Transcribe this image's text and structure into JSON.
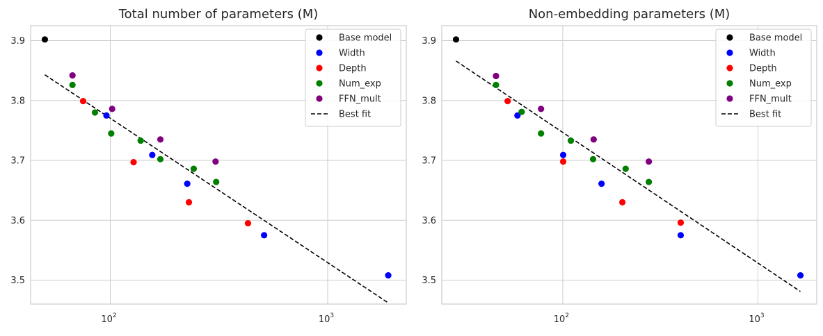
{
  "figure": {
    "background": "#ffffff"
  },
  "chart_data": [
    {
      "type": "scatter",
      "title": "Total number of parameters (M)",
      "xscale": "log",
      "xlim": [
        43,
        2300
      ],
      "ylim": [
        3.46,
        3.925
      ],
      "xticks": [
        100,
        1000
      ],
      "xtick_labels": [
        {
          "base": "10",
          "exp": "2"
        },
        {
          "base": "10",
          "exp": "3"
        }
      ],
      "yticks": [
        3.5,
        3.6,
        3.7,
        3.8,
        3.9
      ],
      "ytick_labels": [
        "3.5",
        "3.6",
        "3.7",
        "3.8",
        "3.9"
      ],
      "grid": true,
      "legend_position": "top-right",
      "series": [
        {
          "name": "Base model",
          "color": "#000000",
          "points": [
            [
              50,
              3.902
            ]
          ]
        },
        {
          "name": "Width",
          "color": "#0000ff",
          "points": [
            [
              96,
              3.775
            ],
            [
              156,
              3.709
            ],
            [
              226,
              3.661
            ],
            [
              510,
              3.575
            ],
            [
              1900,
              3.508
            ]
          ]
        },
        {
          "name": "Depth",
          "color": "#ff0000",
          "points": [
            [
              75,
              3.799
            ],
            [
              128,
              3.697
            ],
            [
              230,
              3.63
            ],
            [
              430,
              3.595
            ]
          ]
        },
        {
          "name": "Num_exp",
          "color": "#008000",
          "points": [
            [
              67,
              3.826
            ],
            [
              85,
              3.78
            ],
            [
              101,
              3.745
            ],
            [
              138,
              3.733
            ],
            [
              170,
              3.702
            ],
            [
              242,
              3.686
            ],
            [
              307,
              3.664
            ]
          ]
        },
        {
          "name": "FFN_mult",
          "color": "#800080",
          "points": [
            [
              67,
              3.842
            ],
            [
              102,
              3.786
            ],
            [
              170,
              3.735
            ],
            [
              305,
              3.698
            ]
          ]
        }
      ],
      "best_fit": {
        "name": "Best fit",
        "color": "#000000",
        "x": [
          50,
          1900
        ],
        "y": [
          3.843,
          3.462
        ]
      }
    },
    {
      "type": "scatter",
      "title": "Non-embedding parameters (M)",
      "xscale": "log",
      "xlim": [
        24,
        2000
      ],
      "ylim": [
        3.46,
        3.925
      ],
      "xticks": [
        100,
        1000
      ],
      "xtick_labels": [
        {
          "base": "10",
          "exp": "2"
        },
        {
          "base": "10",
          "exp": "3"
        }
      ],
      "yticks": [
        3.5,
        3.6,
        3.7,
        3.8,
        3.9
      ],
      "ytick_labels": [
        "3.5",
        "3.6",
        "3.7",
        "3.8",
        "3.9"
      ],
      "grid": true,
      "legend_position": "top-right",
      "series": [
        {
          "name": "Base model",
          "color": "#000000",
          "points": [
            [
              28.4,
              3.902
            ]
          ]
        },
        {
          "name": "Width",
          "color": "#0000ff",
          "points": [
            [
              58.6,
              3.775
            ],
            [
              100.5,
              3.709
            ],
            [
              158,
              3.661
            ],
            [
              402,
              3.575
            ],
            [
              1650,
              3.508
            ]
          ]
        },
        {
          "name": "Depth",
          "color": "#ff0000",
          "points": [
            [
              52.2,
              3.799
            ],
            [
              100.5,
              3.698
            ],
            [
              202,
              3.63
            ],
            [
              402,
              3.596
            ]
          ]
        },
        {
          "name": "Num_exp",
          "color": "#008000",
          "points": [
            [
              45.5,
              3.826
            ],
            [
              61.6,
              3.781
            ],
            [
              77.4,
              3.745
            ],
            [
              110,
              3.733
            ],
            [
              143,
              3.702
            ],
            [
              210,
              3.686
            ],
            [
              276,
              3.664
            ]
          ]
        },
        {
          "name": "FFN_mult",
          "color": "#800080",
          "points": [
            [
              45.5,
              3.841
            ],
            [
              77.4,
              3.786
            ],
            [
              144,
              3.735
            ],
            [
              276,
              3.698
            ]
          ]
        }
      ],
      "best_fit": {
        "name": "Best fit",
        "color": "#000000",
        "x": [
          28.4,
          1650
        ],
        "y": [
          3.866,
          3.481
        ]
      }
    }
  ]
}
